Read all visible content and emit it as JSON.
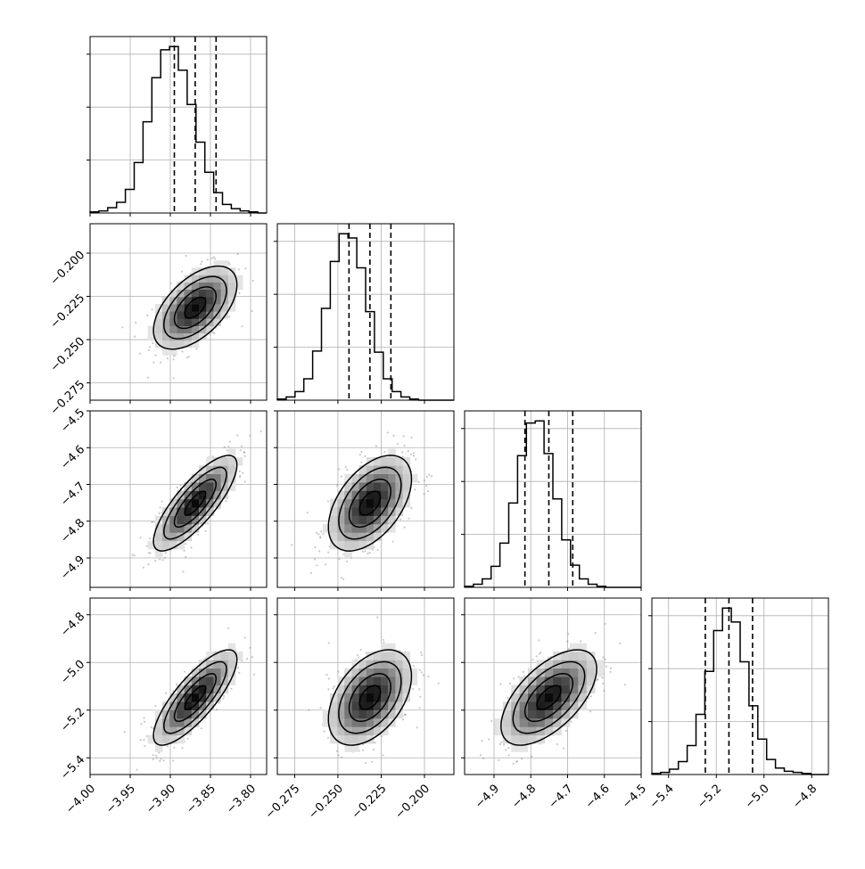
{
  "chart_data": {
    "type": "corner",
    "grid": true,
    "title": "",
    "params": [
      {
        "range": [
          -4.0,
          -3.78
        ],
        "ticks": [
          -4.0,
          -3.95,
          -3.9,
          -3.85,
          -3.8
        ],
        "tick_labels": [
          "−4.00",
          "−3.95",
          "−3.90",
          "−3.85",
          "−3.80"
        ],
        "quantiles": [
          -3.895,
          -3.869,
          -3.843
        ],
        "mean": -3.869,
        "sd": 0.026
      },
      {
        "range": [
          -0.285,
          -0.183
        ],
        "ticks": [
          -0.275,
          -0.25,
          -0.225,
          -0.2
        ],
        "tick_labels": [
          "−0.275",
          "−0.250",
          "−0.225",
          "−0.200"
        ],
        "quantiles": [
          -0.2436,
          -0.2315,
          -0.2194
        ],
        "mean": -0.2315,
        "sd": 0.012
      },
      {
        "range": [
          -4.98,
          -4.5
        ],
        "ticks": [
          -4.9,
          -4.8,
          -4.7,
          -4.6,
          -4.5
        ],
        "tick_labels": [
          "−4.9",
          "−4.8",
          "−4.7",
          "−4.6",
          "−4.5"
        ],
        "quantiles": [
          -4.816,
          -4.751,
          -4.686
        ],
        "mean": -4.751,
        "sd": 0.065
      },
      {
        "range": [
          -5.47,
          -4.73
        ],
        "ticks": [
          -5.4,
          -5.2,
          -5.0,
          -4.8
        ],
        "tick_labels": [
          "−5.4",
          "−5.2",
          "−5.0",
          "−4.8"
        ],
        "quantiles": [
          -5.246,
          -5.147,
          -5.048
        ],
        "mean": -5.147,
        "sd": 0.1
      }
    ],
    "hist_counts": [
      [
        1,
        2,
        5,
        10,
        22,
        47,
        85,
        126,
        152,
        155,
        133,
        101,
        66,
        38,
        19,
        8,
        4,
        2,
        1,
        0
      ],
      [
        1,
        3,
        8,
        20,
        46,
        86,
        130,
        156,
        152,
        124,
        83,
        45,
        20,
        8,
        3,
        1,
        0,
        0,
        0,
        0
      ],
      [
        1,
        3,
        8,
        20,
        42,
        80,
        125,
        156,
        158,
        127,
        84,
        45,
        21,
        8,
        3,
        1,
        0,
        0,
        0,
        0
      ],
      [
        1,
        2,
        5,
        12,
        27,
        56,
        96,
        134,
        155,
        142,
        105,
        64,
        33,
        14,
        6,
        3,
        2,
        1,
        0,
        0
      ]
    ],
    "correlations": {
      "1-0": 0.55,
      "2-0": 0.8,
      "2-1": 0.5,
      "3-0": 0.8,
      "3-1": 0.45,
      "3-2": 0.6
    },
    "contour_levels": [
      0.5,
      1.0,
      1.5,
      2.0
    ]
  }
}
